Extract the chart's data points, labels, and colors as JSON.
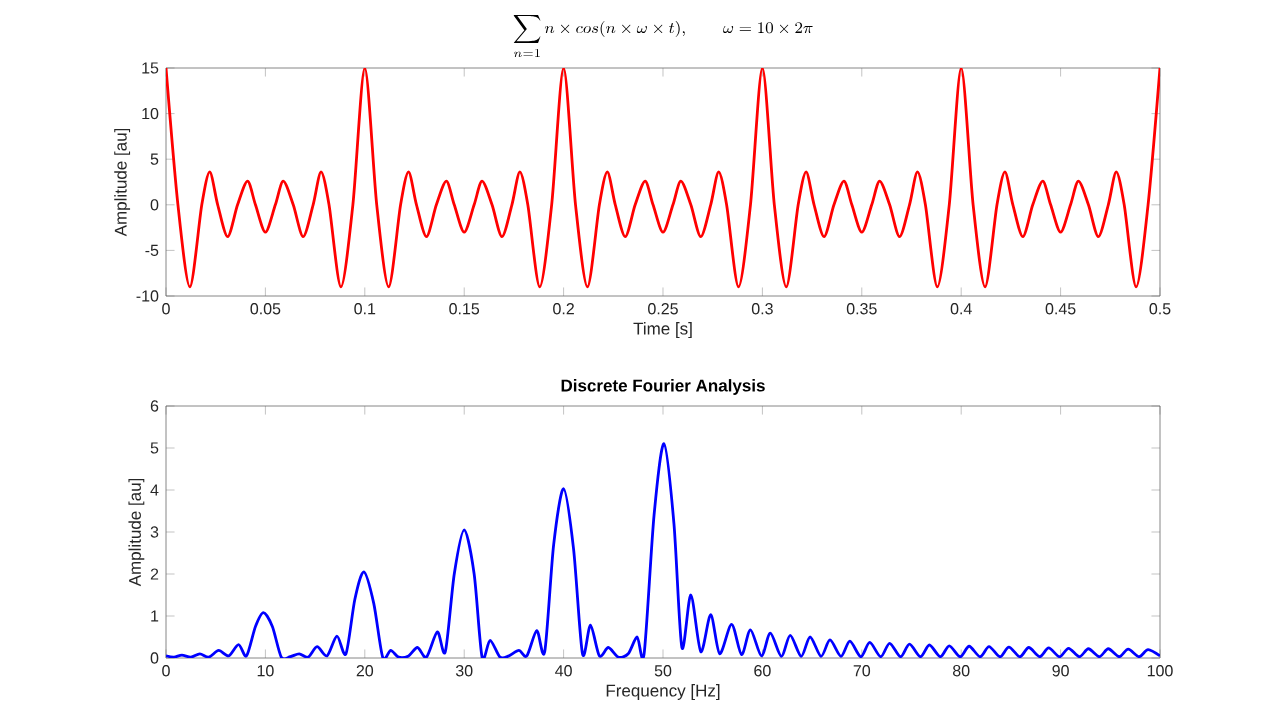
{
  "chart_data": [
    {
      "type": "line",
      "title": "\\sum_{n=1} n \\times cos(n \\times \\omega \\times t), \\qquad \\omega = 10 \\times 2\\pi",
      "xlabel": "Time [s]",
      "ylabel": "Amplitude [au]",
      "xlim": [
        0,
        0.5
      ],
      "ylim": [
        -10,
        15
      ],
      "xticks": [
        0,
        0.05,
        0.1,
        0.15,
        0.2,
        0.25,
        0.3,
        0.35,
        0.4,
        0.45,
        0.5
      ],
      "yticks": [
        -10,
        -5,
        0,
        5,
        10,
        15
      ],
      "grid": false,
      "series": [
        {
          "color": "#ff0000",
          "x": [
            0,
            0.006,
            0.012,
            0.018,
            0.022,
            0.026,
            0.031,
            0.036,
            0.041,
            0.045,
            0.05,
            0.055,
            0.059,
            0.064,
            0.069,
            0.074,
            0.078,
            0.082,
            0.088,
            0.094,
            0.1,
            0.106,
            0.112,
            0.118,
            0.122,
            0.126,
            0.131,
            0.136,
            0.141,
            0.145,
            0.15,
            0.155,
            0.159,
            0.164,
            0.169,
            0.174,
            0.178,
            0.182,
            0.188,
            0.194,
            0.2,
            0.206,
            0.212,
            0.218,
            0.222,
            0.226,
            0.231,
            0.236,
            0.241,
            0.245,
            0.25,
            0.255,
            0.259,
            0.264,
            0.269,
            0.274,
            0.278,
            0.282,
            0.288,
            0.294,
            0.3,
            0.306,
            0.312,
            0.318,
            0.322,
            0.326,
            0.331,
            0.336,
            0.341,
            0.345,
            0.35,
            0.355,
            0.359,
            0.364,
            0.369,
            0.374,
            0.378,
            0.382,
            0.388,
            0.394,
            0.4,
            0.406,
            0.412,
            0.418,
            0.422,
            0.426,
            0.431,
            0.436,
            0.441,
            0.445,
            0.45,
            0.455,
            0.459,
            0.464,
            0.469,
            0.474,
            0.478,
            0.482,
            0.488,
            0.494,
            0.5
          ],
          "values": [
            15,
            0,
            -9,
            0,
            3.6,
            0,
            -3.5,
            0,
            2.6,
            0,
            -3,
            0,
            2.6,
            0,
            -3.5,
            0,
            3.6,
            0,
            -9,
            0,
            15,
            0,
            -9,
            0,
            3.6,
            0,
            -3.5,
            0,
            2.6,
            0,
            -3,
            0,
            2.6,
            0,
            -3.5,
            0,
            3.6,
            0,
            -9,
            0,
            15,
            0,
            -9,
            0,
            3.6,
            0,
            -3.5,
            0,
            2.6,
            0,
            -3,
            0,
            2.6,
            0,
            -3.5,
            0,
            3.6,
            0,
            -9,
            0,
            15,
            0,
            -9,
            0,
            3.6,
            0,
            -3.5,
            0,
            2.6,
            0,
            -3,
            0,
            2.6,
            0,
            -3.5,
            0,
            3.6,
            0,
            -9,
            0,
            15,
            0,
            -9,
            0,
            3.6,
            0,
            -3.5,
            0,
            2.6,
            0,
            -3,
            0,
            2.6,
            0,
            -3.5,
            0,
            3.6,
            0,
            -9,
            0,
            15
          ]
        }
      ]
    },
    {
      "type": "line",
      "title": "Discrete Fourier Analysis",
      "xlabel": "Frequency [Hz]",
      "ylabel": "Amplitude [au]",
      "xlim": [
        0,
        100
      ],
      "ylim": [
        0,
        6
      ],
      "xticks": [
        0,
        10,
        20,
        30,
        40,
        50,
        60,
        70,
        80,
        90,
        100
      ],
      "yticks": [
        0,
        1,
        2,
        3,
        4,
        5,
        6
      ],
      "grid": false,
      "series": [
        {
          "color": "#0000ff",
          "x": [
            0,
            0.8,
            1.6,
            2.5,
            3.4,
            4.3,
            5.3,
            6.3,
            7.3,
            8.1,
            9,
            9.8,
            10.7,
            11.6,
            12.5,
            13.4,
            14.3,
            15.2,
            16.2,
            17.2,
            18.1,
            19,
            19.9,
            20.9,
            21.8,
            22.6,
            23.4,
            24.4,
            25.3,
            26.2,
            27.3,
            28.1,
            29,
            30,
            31,
            31.8,
            32.6,
            33.6,
            34.5,
            35.5,
            36.3,
            37.3,
            38.1,
            39,
            40,
            41,
            41.9,
            42.7,
            43.6,
            44.5,
            45.5,
            46.5,
            47.4,
            48.1,
            49.1,
            50.1,
            51.1,
            51.9,
            52.8,
            53.8,
            54.8,
            55.7,
            56.9,
            57.9,
            58.8,
            59.9,
            60.8,
            61.9,
            62.8,
            63.9,
            64.8,
            65.9,
            66.8,
            67.9,
            68.8,
            69.9,
            70.8,
            71.9,
            72.8,
            73.9,
            74.8,
            75.9,
            76.8,
            77.9,
            78.8,
            79.9,
            80.8,
            81.9,
            82.8,
            83.9,
            84.8,
            85.9,
            86.8,
            87.9,
            88.8,
            89.9,
            90.8,
            91.9,
            92.8,
            93.9,
            94.8,
            95.9,
            96.8,
            97.9,
            98.8,
            100
          ],
          "values": [
            0.05,
            0.02,
            0.07,
            0.02,
            0.1,
            0.02,
            0.18,
            0.05,
            0.32,
            0.05,
            0.75,
            1.08,
            0.75,
            0.02,
            0.03,
            0.1,
            0.02,
            0.27,
            0.05,
            0.52,
            0.1,
            1.4,
            2.05,
            1.3,
            0.02,
            0.18,
            0.02,
            0.05,
            0.25,
            0.02,
            0.62,
            0.15,
            2.0,
            3.05,
            2.0,
            0.02,
            0.42,
            0.02,
            0.05,
            0.18,
            0.05,
            0.65,
            0.15,
            2.7,
            4.03,
            2.6,
            0.1,
            0.78,
            0.05,
            0.25,
            0.02,
            0.1,
            0.5,
            0.1,
            3.4,
            5.1,
            3.2,
            0.25,
            1.5,
            0.15,
            1.03,
            0.1,
            0.8,
            0.08,
            0.67,
            0.05,
            0.59,
            0.04,
            0.54,
            0.04,
            0.5,
            0.04,
            0.43,
            0.04,
            0.4,
            0.03,
            0.37,
            0.03,
            0.35,
            0.03,
            0.33,
            0.03,
            0.31,
            0.03,
            0.29,
            0.03,
            0.28,
            0.03,
            0.27,
            0.03,
            0.26,
            0.03,
            0.25,
            0.03,
            0.24,
            0.03,
            0.23,
            0.03,
            0.22,
            0.03,
            0.22,
            0.03,
            0.21,
            0.03,
            0.2,
            0.05
          ]
        }
      ]
    }
  ]
}
